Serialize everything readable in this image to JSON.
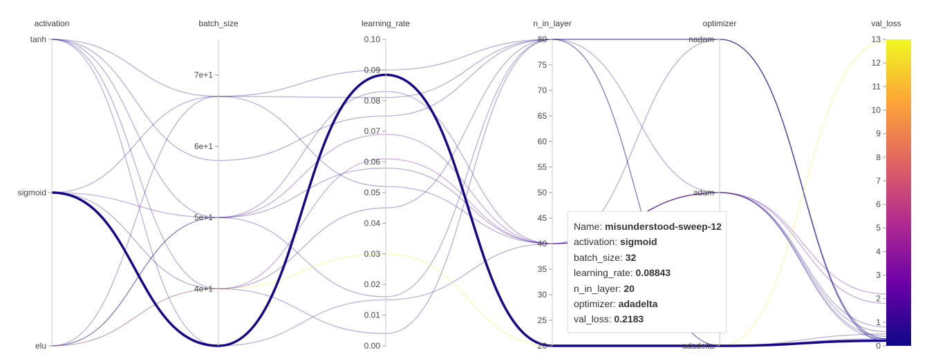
{
  "chart_data": {
    "type": "parallel_coordinates",
    "axes": [
      {
        "key": "activation",
        "label": "activation",
        "scale": "categorical",
        "categories": [
          "elu",
          "sigmoid",
          "tanh"
        ],
        "tick_labels": [
          "tanh",
          "sigmoid",
          "elu"
        ]
      },
      {
        "key": "batch_size",
        "label": "batch_size",
        "scale": "linear",
        "range": [
          32,
          75
        ],
        "ticks": [
          40,
          50,
          60,
          70
        ],
        "tick_labels": [
          "4e+1",
          "5e+1",
          "6e+1",
          "7e+1"
        ]
      },
      {
        "key": "learning_rate",
        "label": "learning_rate",
        "scale": "linear",
        "range": [
          0,
          0.1
        ],
        "ticks": [
          0.0,
          0.01,
          0.02,
          0.03,
          0.04,
          0.05,
          0.06,
          0.07,
          0.08,
          0.09,
          0.1
        ],
        "tick_labels": [
          "0.00",
          "0.01",
          "0.02",
          "0.03",
          "0.04",
          "0.05",
          "0.06",
          "0.07",
          "0.08",
          "0.09",
          "0.10"
        ]
      },
      {
        "key": "n_in_layer",
        "label": "n_in_layer",
        "scale": "linear",
        "range": [
          20,
          80
        ],
        "ticks": [
          20,
          25,
          30,
          35,
          40,
          45,
          50,
          55,
          60,
          65,
          70,
          75,
          80
        ],
        "tick_labels": [
          "20",
          "25",
          "30",
          "35",
          "40",
          "45",
          "50",
          "55",
          "60",
          "65",
          "70",
          "75",
          "80"
        ]
      },
      {
        "key": "optimizer",
        "label": "optimizer",
        "scale": "categorical",
        "categories": [
          "adadelta",
          "adam",
          "nadam"
        ],
        "tick_labels": [
          "nadam",
          "adam",
          "adadelta"
        ]
      },
      {
        "key": "val_loss",
        "label": "val_loss",
        "scale": "linear",
        "range": [
          0,
          13
        ],
        "ticks": [
          0,
          1,
          2,
          3,
          4,
          5,
          6,
          7,
          8,
          9,
          10,
          11,
          12,
          13
        ],
        "tick_labels": [
          "0",
          "1",
          "2",
          "3",
          "4",
          "5",
          "6",
          "7",
          "8",
          "9",
          "10",
          "11",
          "12",
          "13"
        ]
      }
    ],
    "colorbar": {
      "key": "val_loss",
      "colors": [
        "#0d0887",
        "#6a00a8",
        "#b12a90",
        "#e16462",
        "#fca636",
        "#f0f921"
      ]
    },
    "runs": [
      {
        "activation": "sigmoid",
        "batch_size": 32,
        "learning_rate": 0.08843,
        "n_in_layer": 20,
        "optimizer": "adadelta",
        "val_loss": 0.2183,
        "highlight": true
      },
      {
        "activation": "tanh",
        "batch_size": 67,
        "learning_rate": 0.052,
        "n_in_layer": 40,
        "optimizer": "adam",
        "val_loss": 0.3
      },
      {
        "activation": "tanh",
        "batch_size": 58,
        "learning_rate": 0.075,
        "n_in_layer": 80,
        "optimizer": "nadam",
        "val_loss": 0.2
      },
      {
        "activation": "tanh",
        "batch_size": 50,
        "learning_rate": 0.083,
        "n_in_layer": 40,
        "optimizer": "adam",
        "val_loss": 0.6
      },
      {
        "activation": "tanh",
        "batch_size": 40,
        "learning_rate": 0.045,
        "n_in_layer": 80,
        "optimizer": "adadelta",
        "val_loss": 0.3
      },
      {
        "activation": "tanh",
        "batch_size": 32,
        "learning_rate": 0.015,
        "n_in_layer": 40,
        "optimizer": "adam",
        "val_loss": 0.8
      },
      {
        "activation": "sigmoid",
        "batch_size": 67,
        "learning_rate": 0.09,
        "n_in_layer": 80,
        "optimizer": "nadam",
        "val_loss": 0.3
      },
      {
        "activation": "sigmoid",
        "batch_size": 50,
        "learning_rate": 0.069,
        "n_in_layer": 40,
        "optimizer": "adam",
        "val_loss": 1.8
      },
      {
        "activation": "sigmoid",
        "batch_size": 40,
        "learning_rate": 0.004,
        "n_in_layer": 80,
        "optimizer": "nadam",
        "val_loss": 0.2
      },
      {
        "activation": "elu",
        "batch_size": 67,
        "learning_rate": 0.081,
        "n_in_layer": 80,
        "optimizer": "adam",
        "val_loss": 0.4
      },
      {
        "activation": "elu",
        "batch_size": 50,
        "learning_rate": 0.058,
        "n_in_layer": 40,
        "optimizer": "nadam",
        "val_loss": 0.3
      },
      {
        "activation": "elu",
        "batch_size": 50,
        "learning_rate": 0.016,
        "n_in_layer": 80,
        "optimizer": "adadelta",
        "val_loss": 0.5
      },
      {
        "activation": "elu",
        "batch_size": 40,
        "learning_rate": 0.03,
        "n_in_layer": 20,
        "optimizer": "adadelta",
        "val_loss": 12.9
      },
      {
        "activation": "elu",
        "batch_size": 40,
        "learning_rate": 0.061,
        "n_in_layer": 40,
        "optimizer": "adam",
        "val_loss": 2.2
      }
    ]
  },
  "tooltip": {
    "rows": [
      {
        "label": "Name: ",
        "value": "misunderstood-sweep-12"
      },
      {
        "label": "activation: ",
        "value": "sigmoid"
      },
      {
        "label": "batch_size: ",
        "value": "32"
      },
      {
        "label": "learning_rate: ",
        "value": "0.08843"
      },
      {
        "label": "n_in_layer: ",
        "value": "20"
      },
      {
        "label": "optimizer: ",
        "value": "adadelta"
      },
      {
        "label": "val_loss: ",
        "value": "0.2183"
      }
    ]
  }
}
